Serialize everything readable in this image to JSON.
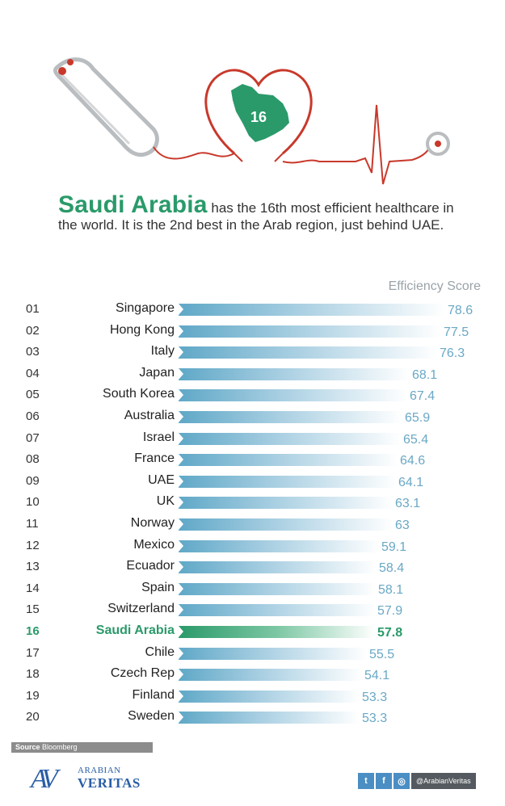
{
  "hero": {
    "badge_number": "16",
    "colors": {
      "line": "#c8392b",
      "country": "#2a9a6a"
    }
  },
  "headline": {
    "country": "Saudi Arabia",
    "text": " has the 16th most efficient healthcare in the world. It is the 2nd best in the Arab region, just behind UAE."
  },
  "score_header": "Efficiency Score",
  "chart_data": {
    "type": "bar",
    "orientation": "horizontal",
    "value_label": "Efficiency Score",
    "highlight": "Saudi Arabia",
    "colors": {
      "bar": "#5fa8c7",
      "highlight": "#2a9a6a",
      "value_text": "#6aa8c5"
    },
    "rows": [
      {
        "rank": "01",
        "country": "Singapore",
        "value": 78.6,
        "label": "78.6"
      },
      {
        "rank": "02",
        "country": "Hong Kong",
        "value": 77.5,
        "label": "77.5"
      },
      {
        "rank": "03",
        "country": "Italy",
        "value": 76.3,
        "label": "76.3"
      },
      {
        "rank": "04",
        "country": "Japan",
        "value": 68.1,
        "label": "68.1"
      },
      {
        "rank": "05",
        "country": "South Korea",
        "value": 67.4,
        "label": "67.4"
      },
      {
        "rank": "06",
        "country": "Australia",
        "value": 65.9,
        "label": "65.9"
      },
      {
        "rank": "07",
        "country": "Israel",
        "value": 65.4,
        "label": "65.4"
      },
      {
        "rank": "08",
        "country": "France",
        "value": 64.6,
        "label": "64.6"
      },
      {
        "rank": "09",
        "country": "UAE",
        "value": 64.1,
        "label": "64.1"
      },
      {
        "rank": "10",
        "country": "UK",
        "value": 63.1,
        "label": "63.1"
      },
      {
        "rank": "11",
        "country": "Norway",
        "value": 63.0,
        "label": "63"
      },
      {
        "rank": "12",
        "country": "Mexico",
        "value": 59.1,
        "label": "59.1"
      },
      {
        "rank": "13",
        "country": "Ecuador",
        "value": 58.4,
        "label": "58.4"
      },
      {
        "rank": "14",
        "country": "Spain",
        "value": 58.1,
        "label": "58.1"
      },
      {
        "rank": "15",
        "country": "Switzerland",
        "value": 57.9,
        "label": "57.9"
      },
      {
        "rank": "16",
        "country": "Saudi Arabia",
        "value": 57.8,
        "label": "57.8"
      },
      {
        "rank": "17",
        "country": "Chile",
        "value": 55.5,
        "label": "55.5"
      },
      {
        "rank": "18",
        "country": "Czech Rep",
        "value": 54.1,
        "label": "54.1"
      },
      {
        "rank": "19",
        "country": "Finland",
        "value": 53.3,
        "label": "53.3"
      },
      {
        "rank": "20",
        "country": "Sweden",
        "value": 53.3,
        "label": "53.3"
      }
    ]
  },
  "source": {
    "label": "Source",
    "name": "Bloomberg"
  },
  "logo": {
    "mark": "AV",
    "line1": "ARABIAN",
    "line2": "VERITAS"
  },
  "social": {
    "icons": [
      "twitter-icon",
      "facebook-icon",
      "instagram-icon"
    ],
    "glyphs": [
      "t",
      "f",
      "◎"
    ],
    "handle": "@ArabianVeritas"
  }
}
